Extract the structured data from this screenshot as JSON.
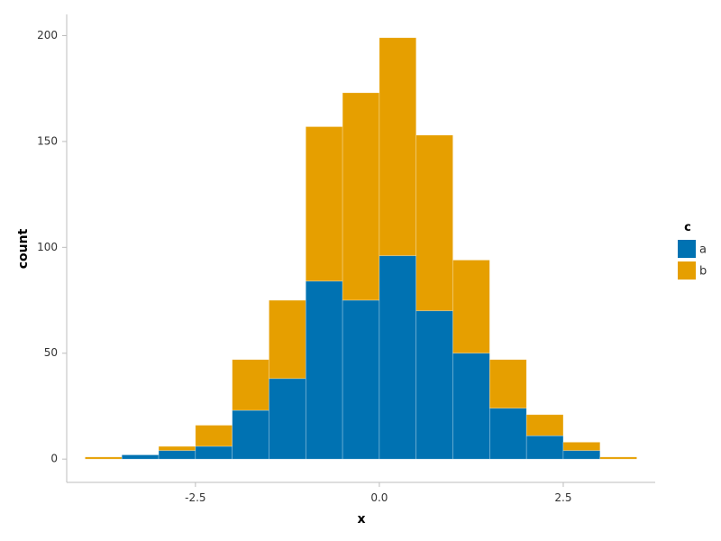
{
  "chart_data": {
    "type": "bar",
    "stacked": true,
    "xlabel": "x",
    "ylabel": "count",
    "xlim": [
      -4.25,
      3.75
    ],
    "ylim": [
      -11,
      210
    ],
    "x_ticks": [
      -2.5,
      0.0,
      2.5
    ],
    "x_tick_labels": [
      "-2.5",
      "0.0",
      "2.5"
    ],
    "y_ticks": [
      0,
      50,
      100,
      150,
      200
    ],
    "y_tick_labels": [
      "0",
      "50",
      "100",
      "150",
      "200"
    ],
    "bin_width": 0.5,
    "bin_edges": [
      -4.0,
      -3.5,
      -3.0,
      -2.5,
      -2.0,
      -1.5,
      -1.0,
      -0.5,
      0.0,
      0.5,
      1.0,
      1.5,
      2.0,
      2.5,
      3.0,
      3.5
    ],
    "series": [
      {
        "name": "a",
        "color": "#0072B2",
        "values": [
          0,
          2,
          4,
          6,
          23,
          38,
          84,
          75,
          96,
          70,
          50,
          24,
          11,
          4,
          0
        ]
      },
      {
        "name": "b",
        "color": "#E69F00",
        "values": [
          1,
          0,
          2,
          10,
          24,
          37,
          73,
          98,
          103,
          83,
          44,
          23,
          10,
          4,
          1
        ]
      }
    ],
    "legend": {
      "title": "c",
      "placement": "right"
    },
    "grid": false
  }
}
